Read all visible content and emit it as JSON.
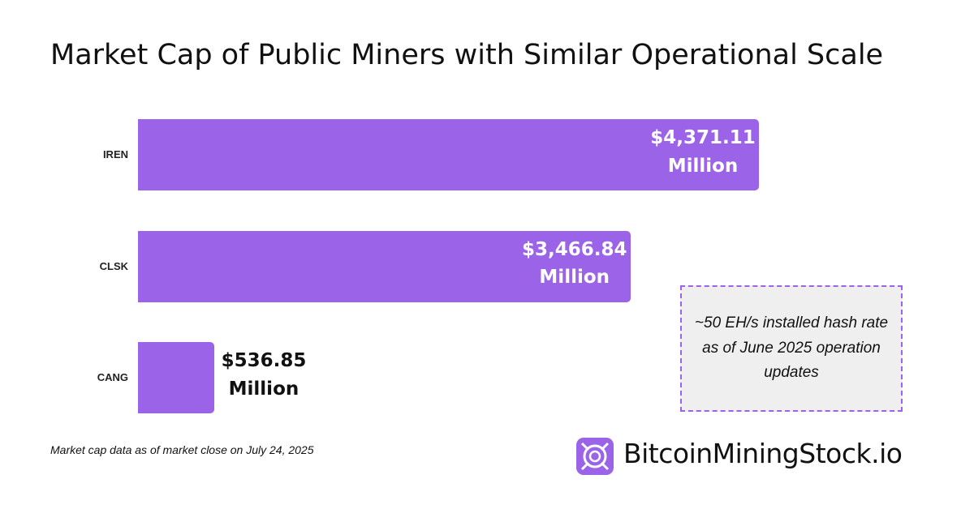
{
  "chart_data": {
    "type": "bar",
    "orientation": "horizontal",
    "title": "Market Cap of Public Miners with Similar Operational Scale",
    "categories": [
      "IREN",
      "CLSK",
      "CANG"
    ],
    "values": [
      4371.11,
      3466.84,
      536.85
    ],
    "value_labels": [
      "$4,371.11 Million",
      "$3,466.84 Million",
      "$536.85 Million"
    ],
    "color": "#9b63e8",
    "annotation": "~50 EH/s installed hash rate as of June 2025 operation updates",
    "footnote": "Market cap data as of market close on July 24, 2025",
    "brand": "BitcoinMiningStock.io"
  }
}
